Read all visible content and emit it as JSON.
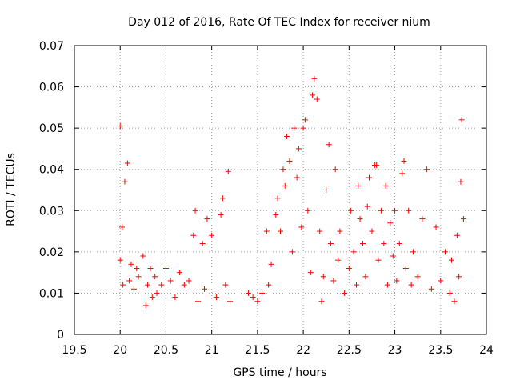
{
  "chart_data": {
    "type": "scatter",
    "title": "Day 012 of 2016, Rate Of TEC Index for receiver nium",
    "xlabel": "GPS time / hours",
    "ylabel": "ROTI / TECUs",
    "xlim": [
      19.5,
      24
    ],
    "ylim": [
      0,
      0.07
    ],
    "xticks": [
      "19.5",
      "20",
      "20.5",
      "21",
      "21.5",
      "22",
      "22.5",
      "23",
      "23.5",
      "24"
    ],
    "yticks": [
      "0",
      "0.01",
      "0.02",
      "0.03",
      "0.04",
      "0.05",
      "0.06",
      "0.07"
    ],
    "grid": true,
    "marker": "+",
    "color": "#ff0000",
    "series": [
      {
        "name": "ROTI",
        "x": [
          20.0,
          20.0,
          20.02,
          20.03,
          20.05,
          20.08,
          20.1,
          20.12,
          20.15,
          20.18,
          20.2,
          20.25,
          20.28,
          20.3,
          20.33,
          20.35,
          20.38,
          20.4,
          20.45,
          20.5,
          20.55,
          20.6,
          20.65,
          20.7,
          20.75,
          20.8,
          20.82,
          20.85,
          20.9,
          20.92,
          20.95,
          21.0,
          21.05,
          21.1,
          21.12,
          21.15,
          21.18,
          21.2,
          21.4,
          21.45,
          21.5,
          21.55,
          21.6,
          21.62,
          21.65,
          21.7,
          21.72,
          21.75,
          21.78,
          21.8,
          21.82,
          21.85,
          21.88,
          21.9,
          21.93,
          21.95,
          21.98,
          22.0,
          22.02,
          22.05,
          22.08,
          22.1,
          22.12,
          22.15,
          22.18,
          22.2,
          22.22,
          22.25,
          22.28,
          22.3,
          22.33,
          22.35,
          22.38,
          22.4,
          22.45,
          22.5,
          22.52,
          22.55,
          22.58,
          22.6,
          22.62,
          22.65,
          22.68,
          22.7,
          22.72,
          22.75,
          22.78,
          22.8,
          22.82,
          22.85,
          22.88,
          22.9,
          22.92,
          22.95,
          22.98,
          23.0,
          23.02,
          23.05,
          23.08,
          23.1,
          23.12,
          23.15,
          23.18,
          23.2,
          23.25,
          23.3,
          23.35,
          23.4,
          23.45,
          23.5,
          23.55,
          23.6,
          23.62,
          23.65,
          23.68,
          23.7,
          23.72,
          23.73,
          23.75
        ],
        "y": [
          0.0505,
          0.018,
          0.026,
          0.012,
          0.037,
          0.0415,
          0.013,
          0.017,
          0.011,
          0.016,
          0.014,
          0.019,
          0.007,
          0.012,
          0.016,
          0.009,
          0.014,
          0.01,
          0.012,
          0.016,
          0.013,
          0.009,
          0.015,
          0.012,
          0.013,
          0.024,
          0.03,
          0.008,
          0.022,
          0.011,
          0.028,
          0.024,
          0.009,
          0.029,
          0.033,
          0.012,
          0.0395,
          0.008,
          0.01,
          0.009,
          0.008,
          0.01,
          0.025,
          0.012,
          0.017,
          0.029,
          0.033,
          0.025,
          0.04,
          0.036,
          0.048,
          0.042,
          0.02,
          0.05,
          0.038,
          0.045,
          0.026,
          0.05,
          0.052,
          0.03,
          0.015,
          0.058,
          0.062,
          0.057,
          0.025,
          0.008,
          0.014,
          0.035,
          0.046,
          0.022,
          0.013,
          0.04,
          0.018,
          0.025,
          0.01,
          0.016,
          0.03,
          0.02,
          0.012,
          0.036,
          0.028,
          0.022,
          0.014,
          0.031,
          0.038,
          0.025,
          0.041,
          0.041,
          0.018,
          0.03,
          0.022,
          0.036,
          0.012,
          0.027,
          0.019,
          0.03,
          0.013,
          0.022,
          0.039,
          0.042,
          0.016,
          0.03,
          0.012,
          0.02,
          0.014,
          0.028,
          0.04,
          0.011,
          0.026,
          0.013,
          0.02,
          0.01,
          0.018,
          0.008,
          0.024,
          0.014,
          0.037,
          0.052,
          0.028
        ]
      }
    ]
  }
}
